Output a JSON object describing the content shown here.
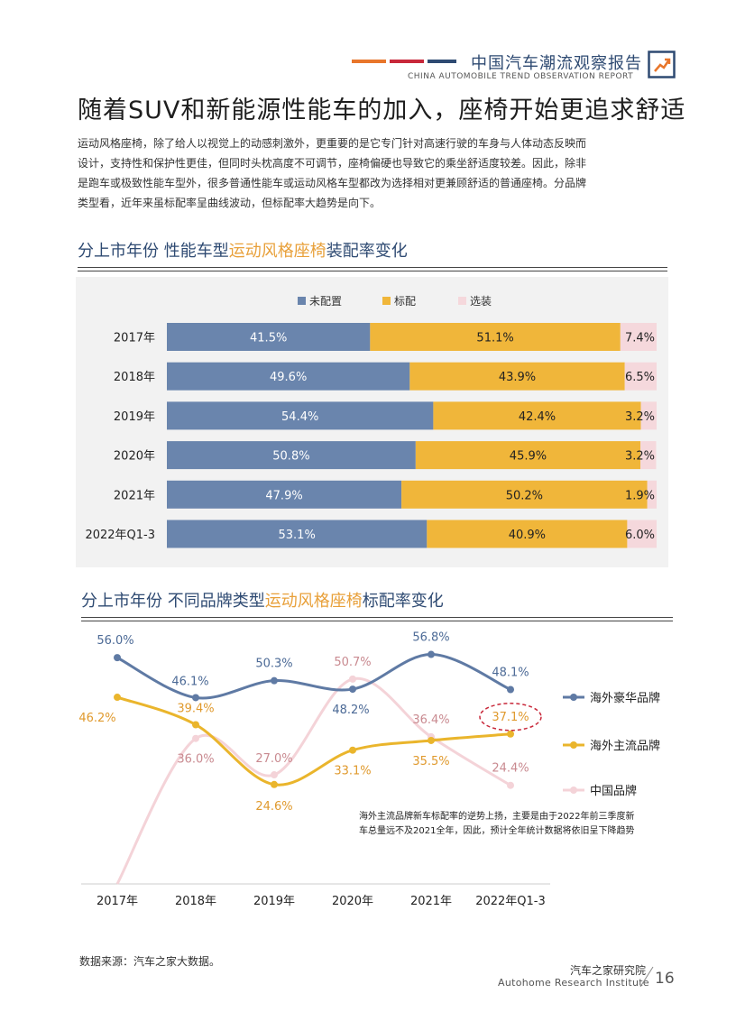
{
  "header": {
    "title_cn": "中国汽车潮流观察报告",
    "title_en": "CHINA AUTOMOBILE TREND OBSERVATION REPORT",
    "bar_colors": [
      "#e8762b",
      "#c8283a",
      "#2e4a72"
    ]
  },
  "main_title": "随着SUV和新能源性能车的加入，座椅开始更追求舒适",
  "intro_lines": [
    "运动风格座椅，除了给人以视觉上的动感刺激外，更重要的是它专门针对高速行驶的车身与人体动态反映而",
    "设计，支持性和保护性更佳，但同时头枕高度不可调节，座椅偏硬也导致它的乘坐舒适度较差。因此，除非",
    "是跑车或极致性能车型外，很多普通性能车或运动风格车型都改为选择相对更兼顾舒适的普通座椅。分品牌",
    "类型看，近年来虽标配率呈曲线波动，但标配率大趋势是向下。"
  ],
  "section1": {
    "title_pre": "分上市年份  性能车型",
    "title_hl": "运动风格座椅",
    "title_post": "装配率变化"
  },
  "section2": {
    "title_pre": "分上市年份  不同品牌类型",
    "title_hl": "运动风格座椅",
    "title_post": "标配率变化"
  },
  "chart_data": [
    {
      "type": "bar",
      "orientation": "horizontal",
      "stacked": true,
      "percent_stacked": true,
      "categories": [
        "2017年",
        "2018年",
        "2019年",
        "2020年",
        "2021年",
        "2022年Q1-3"
      ],
      "series": [
        {
          "name": "未配置",
          "color": "#6a85ad",
          "values": [
            41.5,
            49.6,
            54.4,
            50.8,
            47.9,
            53.1
          ]
        },
        {
          "name": "标配",
          "color": "#f0b63a",
          "values": [
            51.1,
            43.9,
            42.4,
            45.9,
            50.2,
            40.9
          ]
        },
        {
          "name": "选装",
          "color": "#f5d8dc",
          "values": [
            7.4,
            6.5,
            3.2,
            3.2,
            1.9,
            6.0
          ]
        }
      ],
      "labels": [
        [
          "41.5%",
          "51.1%",
          "7.4%"
        ],
        [
          "49.6%",
          "43.9%",
          "6.5%"
        ],
        [
          "54.4%",
          "42.4%",
          "3.2%"
        ],
        [
          "50.8%",
          "45.9%",
          "3.2%"
        ],
        [
          "47.9%",
          "50.2%",
          "1.9%"
        ],
        [
          "53.1%",
          "40.9%",
          "6.0%"
        ]
      ],
      "legend_position": "top-center",
      "background": "#f2f2f2"
    },
    {
      "type": "line",
      "smooth": true,
      "x": [
        "2017年",
        "2018年",
        "2019年",
        "2020年",
        "2021年",
        "2022年Q1-3"
      ],
      "ylim": [
        0,
        60
      ],
      "series": [
        {
          "name": "海外豪华品牌",
          "color": "#5f7aa4",
          "values": [
            56.0,
            46.1,
            50.3,
            48.2,
            56.8,
            48.1
          ],
          "labels": [
            "56.0%",
            "46.1%",
            "50.3%",
            "48.2%",
            "56.8%",
            "48.1%"
          ]
        },
        {
          "name": "海外主流品牌",
          "color": "#eab52c",
          "values": [
            46.2,
            39.4,
            24.6,
            33.1,
            35.5,
            37.1
          ],
          "labels": [
            "46.2%",
            "39.4%",
            "24.6%",
            "33.1%",
            "35.5%",
            "37.1%"
          ]
        },
        {
          "name": "中国品牌",
          "color": "#f4d3d8",
          "values": [
            0,
            36.0,
            27.0,
            50.7,
            36.4,
            24.4
          ],
          "labels": [
            "",
            "36.0%",
            "27.0%",
            "50.7%",
            "36.4%",
            "24.4%"
          ]
        }
      ],
      "annotation": "海外主流品牌新车标配率的逆势上扬，主要是由于2022年前三季度新车总量远不及2021全年，因此，预计全年统计数据将依旧呈下降趋势",
      "highlight": {
        "series": "海外主流品牌",
        "category": "2022年Q1-3",
        "color": "#c8283a"
      },
      "legend_position": "right"
    }
  ],
  "footer": {
    "source": "数据来源：汽车之家大数据。",
    "institute_cn": "汽车之家研究院",
    "institute_en": "Autohome Research Institute",
    "page": "16"
  }
}
